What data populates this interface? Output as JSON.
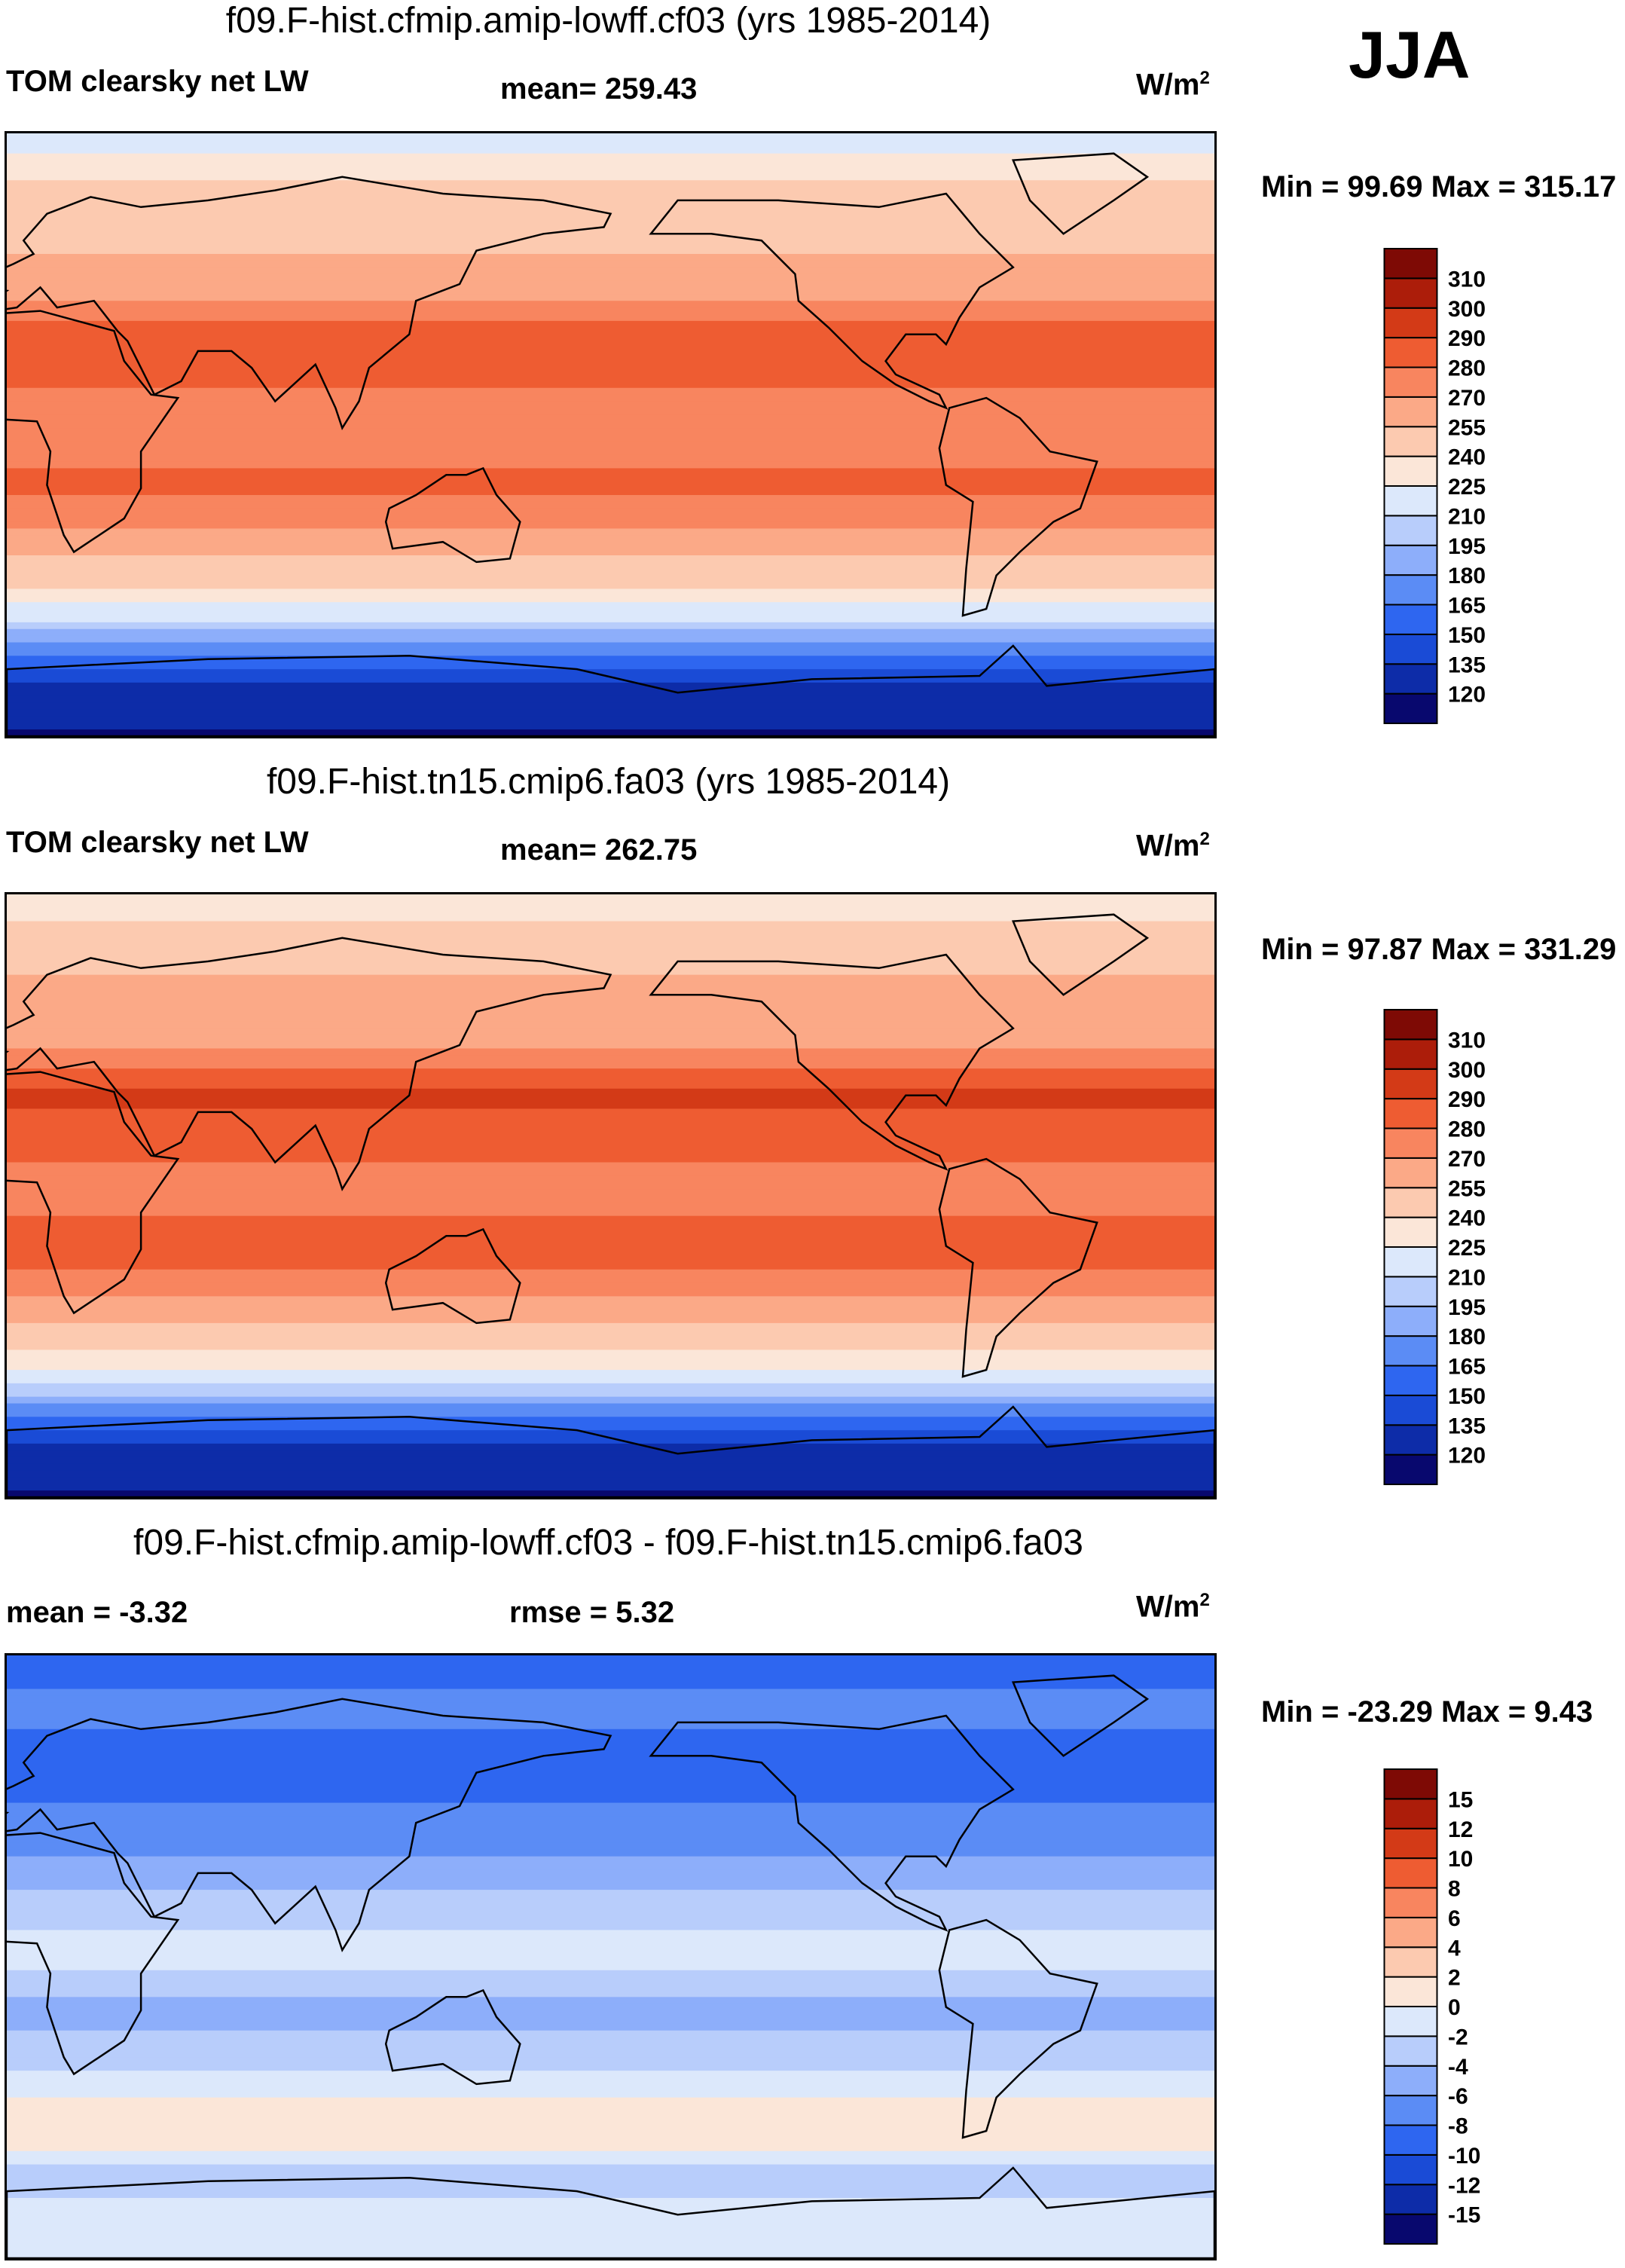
{
  "season": "JJA",
  "panels": [
    {
      "title": "f09.F-hist.cfmip.amip-lowff.cf03 (yrs 1985-2014)",
      "left_label": "TOM clearsky net LW",
      "center_label": "mean= 259.43",
      "units": "W/m",
      "units_sup": "2",
      "minmax": "Min =  99.69 Max = 315.17"
    },
    {
      "title": "f09.F-hist.tn15.cmip6.fa03 (yrs 1985-2014)",
      "left_label": "TOM clearsky net LW",
      "center_label": "mean= 262.75",
      "units": "W/m",
      "units_sup": "2",
      "minmax": "Min =  97.87 Max = 331.29"
    },
    {
      "title": "f09.F-hist.cfmip.amip-lowff.cf03 - f09.F-hist.tn15.cmip6.fa03",
      "left_label": "mean =  -3.32",
      "center_label": "rmse =    5.32",
      "units": "W/m",
      "units_sup": "2",
      "minmax": "Min = -23.29 Max =   9.43"
    }
  ],
  "chart_data": [
    {
      "type": "heatmap",
      "title": "f09.F-hist.cfmip.amip-lowff.cf03 (yrs 1985-2014)",
      "variable": "TOM clearsky net LW",
      "mean": 259.43,
      "min": 99.69,
      "max": 315.17,
      "units": "W/m2",
      "levels": [
        120,
        135,
        150,
        165,
        180,
        195,
        210,
        225,
        240,
        255,
        270,
        280,
        290,
        300,
        310
      ],
      "colors": [
        "#08086e",
        "#0d2ca8",
        "#1a4bd6",
        "#2e66f0",
        "#5b8cf5",
        "#8daefa",
        "#b8cdfb",
        "#dce8fb",
        "#fbe6d8",
        "#fccab0",
        "#fba987",
        "#f8855f",
        "#ee5c32",
        "#d33a17",
        "#ac1d0a",
        "#7e0a05"
      ],
      "zonal_profile": [
        {
          "lat": 90,
          "value": 215
        },
        {
          "lat": 75,
          "value": 240
        },
        {
          "lat": 60,
          "value": 250
        },
        {
          "lat": 45,
          "value": 262
        },
        {
          "lat": 30,
          "value": 285
        },
        {
          "lat": 15,
          "value": 280
        },
        {
          "lat": 0,
          "value": 272
        },
        {
          "lat": -15,
          "value": 284
        },
        {
          "lat": -30,
          "value": 268
        },
        {
          "lat": -45,
          "value": 240
        },
        {
          "lat": -55,
          "value": 212
        },
        {
          "lat": -65,
          "value": 165
        },
        {
          "lat": -75,
          "value": 130
        },
        {
          "lat": -90,
          "value": 118
        }
      ]
    },
    {
      "type": "heatmap",
      "title": "f09.F-hist.tn15.cmip6.fa03 (yrs 1985-2014)",
      "variable": "TOM clearsky net LW",
      "mean": 262.75,
      "min": 97.87,
      "max": 331.29,
      "units": "W/m2",
      "levels": [
        120,
        135,
        150,
        165,
        180,
        195,
        210,
        225,
        240,
        255,
        270,
        280,
        290,
        300,
        310
      ],
      "colors": [
        "#08086e",
        "#0d2ca8",
        "#1a4bd6",
        "#2e66f0",
        "#5b8cf5",
        "#8daefa",
        "#b8cdfb",
        "#dce8fb",
        "#fbe6d8",
        "#fccab0",
        "#fba987",
        "#f8855f",
        "#ee5c32",
        "#d33a17",
        "#ac1d0a",
        "#7e0a05"
      ],
      "zonal_profile": [
        {
          "lat": 90,
          "value": 228
        },
        {
          "lat": 75,
          "value": 250
        },
        {
          "lat": 60,
          "value": 258
        },
        {
          "lat": 45,
          "value": 268
        },
        {
          "lat": 30,
          "value": 292
        },
        {
          "lat": 15,
          "value": 283
        },
        {
          "lat": 0,
          "value": 275
        },
        {
          "lat": -15,
          "value": 287
        },
        {
          "lat": -30,
          "value": 270
        },
        {
          "lat": -45,
          "value": 243
        },
        {
          "lat": -55,
          "value": 214
        },
        {
          "lat": -65,
          "value": 168
        },
        {
          "lat": -75,
          "value": 132
        },
        {
          "lat": -90,
          "value": 118
        }
      ]
    },
    {
      "type": "heatmap",
      "title": "f09.F-hist.cfmip.amip-lowff.cf03 - f09.F-hist.tn15.cmip6.fa03",
      "mean": -3.32,
      "rmse": 5.32,
      "min": -23.29,
      "max": 9.43,
      "units": "W/m2",
      "levels": [
        -15,
        -12,
        -10,
        -8,
        -6,
        -4,
        -2,
        0,
        2,
        4,
        6,
        8,
        10,
        12,
        15
      ],
      "colors": [
        "#08086e",
        "#0d2ca8",
        "#1a4bd6",
        "#2e66f0",
        "#5b8cf5",
        "#8daefa",
        "#b8cdfb",
        "#dce8fb",
        "#fbe6d8",
        "#fccab0",
        "#fba987",
        "#f8855f",
        "#ee5c32",
        "#d33a17",
        "#ac1d0a",
        "#7e0a05"
      ],
      "zonal_profile": [
        {
          "lat": 90,
          "value": -10
        },
        {
          "lat": 75,
          "value": -7
        },
        {
          "lat": 60,
          "value": -9
        },
        {
          "lat": 45,
          "value": -8
        },
        {
          "lat": 30,
          "value": -6
        },
        {
          "lat": 15,
          "value": -3
        },
        {
          "lat": 0,
          "value": -1
        },
        {
          "lat": -15,
          "value": -5
        },
        {
          "lat": -30,
          "value": -3
        },
        {
          "lat": -45,
          "value": 1
        },
        {
          "lat": -55,
          "value": 1
        },
        {
          "lat": -65,
          "value": -4
        },
        {
          "lat": -75,
          "value": -1
        },
        {
          "lat": -90,
          "value": 0
        }
      ]
    }
  ]
}
